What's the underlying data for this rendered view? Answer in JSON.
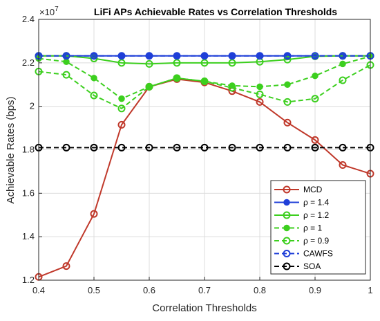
{
  "chart_data": {
    "type": "line",
    "title": "LiFi APs Achievable Rates vs Correlation Thresholds",
    "multiplier": "×10",
    "multiplier_exp": "7",
    "xlabel": "Correlation Thresholds",
    "ylabel": "Achievable Rates (bps)",
    "xlim": [
      0.4,
      1.0
    ],
    "ylim": [
      1.2,
      2.4
    ],
    "xticks": [
      "0.4",
      "0.5",
      "0.6",
      "0.7",
      "0.8",
      "0.9",
      "1"
    ],
    "yticks": [
      "1.2",
      "1.4",
      "1.6",
      "1.8",
      "2",
      "2.2",
      "2.4"
    ],
    "grid": true,
    "legend_position": "bottom-right",
    "x": [
      0.4,
      0.45,
      0.5,
      0.55,
      0.6,
      0.65,
      0.7,
      0.75,
      0.8,
      0.85,
      0.9,
      0.95,
      1.0
    ],
    "series": [
      {
        "name": "MCD",
        "color": "#c0392b",
        "dash": "solid",
        "marker": "open-circle",
        "values": [
          1.215,
          1.265,
          1.505,
          1.915,
          2.09,
          2.125,
          2.11,
          2.07,
          2.02,
          1.925,
          1.845,
          1.73,
          1.69
        ]
      },
      {
        "name": "ρ = 1.4",
        "color": "#1f3fd8",
        "dash": "solid",
        "marker": "filled-dot",
        "values": [
          2.232,
          2.232,
          2.232,
          2.232,
          2.232,
          2.232,
          2.232,
          2.232,
          2.232,
          2.232,
          2.232,
          2.232,
          2.232
        ]
      },
      {
        "name": "ρ = 1.2",
        "color": "#3ccf1e",
        "dash": "solid",
        "marker": "open-circle",
        "values": [
          2.232,
          2.232,
          2.22,
          2.2,
          2.195,
          2.2,
          2.2,
          2.2,
          2.205,
          2.215,
          2.23,
          2.232,
          2.232
        ]
      },
      {
        "name": "ρ = 1",
        "color": "#3ccf1e",
        "dash": "dash",
        "marker": "filled-dot",
        "values": [
          2.22,
          2.205,
          2.13,
          2.035,
          2.09,
          2.13,
          2.115,
          2.095,
          2.09,
          2.1,
          2.14,
          2.195,
          2.23
        ]
      },
      {
        "name": "ρ = 0.9",
        "color": "#3ccf1e",
        "dash": "dash",
        "marker": "open-circle",
        "values": [
          2.16,
          2.145,
          2.05,
          1.99,
          2.09,
          2.13,
          2.115,
          2.085,
          2.055,
          2.02,
          2.035,
          2.12,
          2.19
        ]
      },
      {
        "name": "CAWFS",
        "color": "#1f3fd8",
        "dash": "dash",
        "marker": "open-circle",
        "values": [
          2.232,
          2.232,
          2.232,
          2.232,
          2.232,
          2.232,
          2.232,
          2.232,
          2.232,
          2.232,
          2.232,
          2.232,
          2.232
        ]
      },
      {
        "name": "SOA",
        "color": "#000000",
        "dash": "dash",
        "marker": "open-circle",
        "values": [
          1.81,
          1.81,
          1.81,
          1.81,
          1.81,
          1.81,
          1.81,
          1.81,
          1.81,
          1.81,
          1.81,
          1.81,
          1.81
        ]
      }
    ]
  }
}
